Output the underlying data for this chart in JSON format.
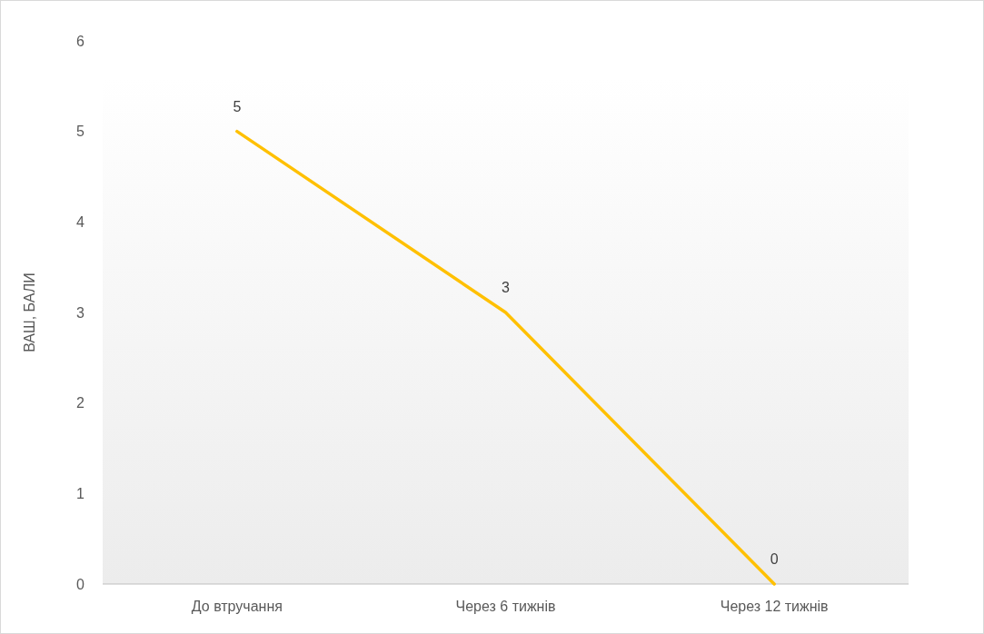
{
  "chart_data": {
    "type": "line",
    "ylabel": "ВАШ, БАЛИ",
    "categories": [
      "До втручання",
      "Через 6 тижнів",
      "Через 12 тижнів"
    ],
    "series": [
      {
        "color": "#ffc000",
        "values": [
          5,
          3,
          0
        ]
      }
    ],
    "ylim": [
      0,
      6
    ],
    "yticks": [
      0,
      1,
      2,
      3,
      4,
      5,
      6
    ],
    "data_labels": true,
    "marker": "none",
    "grid": false
  }
}
